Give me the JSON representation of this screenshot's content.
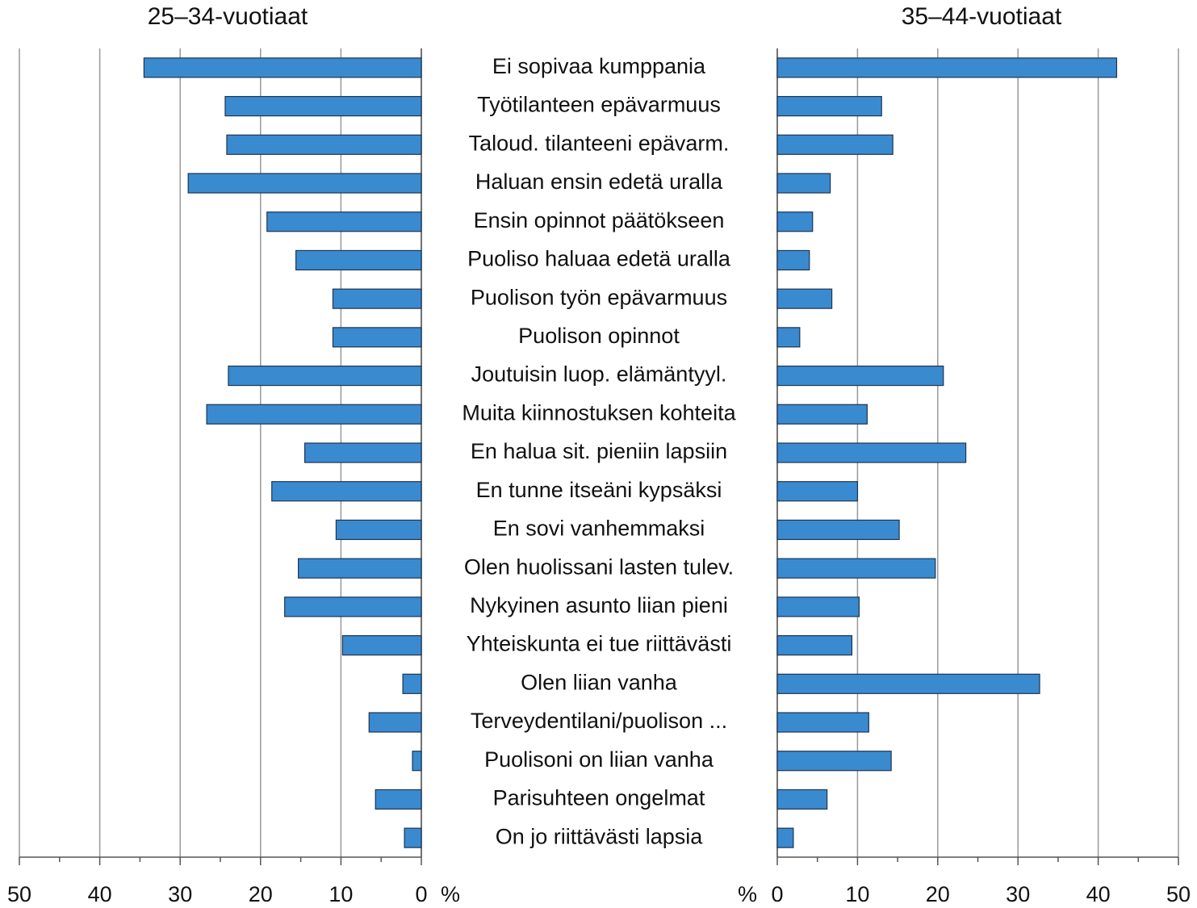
{
  "chart_data": {
    "type": "bar",
    "orientation": "horizontal",
    "categories": [
      "Ei sopivaa kumppania",
      "Työtilanteen epävarmuus",
      "Taloud. tilanteeni epävarm.",
      "Haluan ensin edetä uralla",
      "Ensin opinnot päätökseen",
      "Puoliso haluaa edetä uralla",
      "Puolison työn epävarmuus",
      "Puolison opinnot",
      "Joutuisin luop. elämäntyyl.",
      "Muita kiinnostuksen kohteita",
      "En halua sit. pieniin lapsiin",
      "En tunne itseäni kypsäksi",
      "En sovi vanhemmaksi",
      "Olen huolissani lasten tulev.",
      "Nykyinen asunto liian pieni",
      "Yhteiskunta ei tue riittävästi",
      "Olen liian vanha",
      "Terveydentilani/puolison ...",
      "Puolisoni on liian vanha",
      "Parisuhteen ongelmat",
      "On jo riittävästi lapsia"
    ],
    "series": [
      {
        "name": "25–34-vuotiaat",
        "color": "#3a8ad0",
        "values": [
          34.5,
          24.4,
          24.2,
          29.0,
          19.2,
          15.6,
          11.0,
          11.0,
          24.0,
          26.7,
          14.5,
          18.6,
          10.6,
          15.3,
          17.0,
          9.8,
          2.3,
          6.5,
          1.1,
          5.7,
          2.1
        ]
      },
      {
        "name": "35–44-vuotiaat",
        "color": "#3a8ad0",
        "values": [
          42.3,
          13.0,
          14.4,
          6.6,
          4.4,
          4.0,
          6.8,
          2.8,
          20.7,
          11.2,
          23.5,
          10.0,
          15.2,
          19.7,
          10.2,
          9.3,
          32.7,
          11.4,
          14.2,
          6.2,
          2.0
        ]
      }
    ],
    "x_label": "%",
    "xlim": [
      0,
      50
    ],
    "xticks": [
      0,
      10,
      20,
      30,
      40,
      50
    ],
    "minor_xticks": [
      5,
      15,
      25,
      35,
      45
    ],
    "grid": true
  }
}
